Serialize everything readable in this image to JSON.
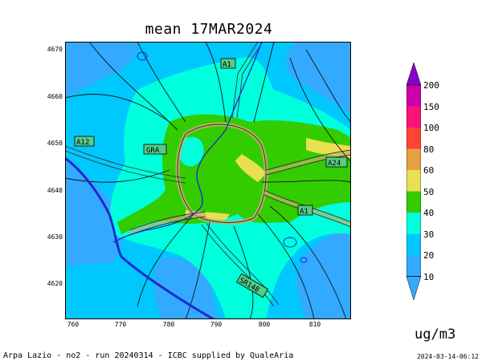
{
  "title": "mean 17MAR2024",
  "map": {
    "y_ticks": [
      "4670",
      "4660",
      "4650",
      "4640",
      "4630",
      "4620"
    ],
    "x_ticks": [
      "760",
      "770",
      "780",
      "790",
      "800",
      "810"
    ],
    "road_labels": {
      "a1_north": "A1",
      "a12": "A12",
      "gra": "GRA",
      "a24": "A24",
      "a1_south": "A1",
      "sr148": "SR148"
    }
  },
  "colorbar": {
    "labels": [
      "200",
      "150",
      "100",
      "80",
      "60",
      "50",
      "40",
      "30",
      "20",
      "10"
    ],
    "colors": [
      "#8800cc",
      "#cc00aa",
      "#ff1177",
      "#ff4433",
      "#e8a040",
      "#e8e050",
      "#33cc00",
      "#00ffdd",
      "#00c8ff",
      "#33aaff"
    ],
    "unit": "ug/m3"
  },
  "footer": {
    "left": "Arpa Lazio - no2 - run 20240314 - ICBC supplied by QualeAria",
    "right": "2024-03-14-06:12"
  }
}
